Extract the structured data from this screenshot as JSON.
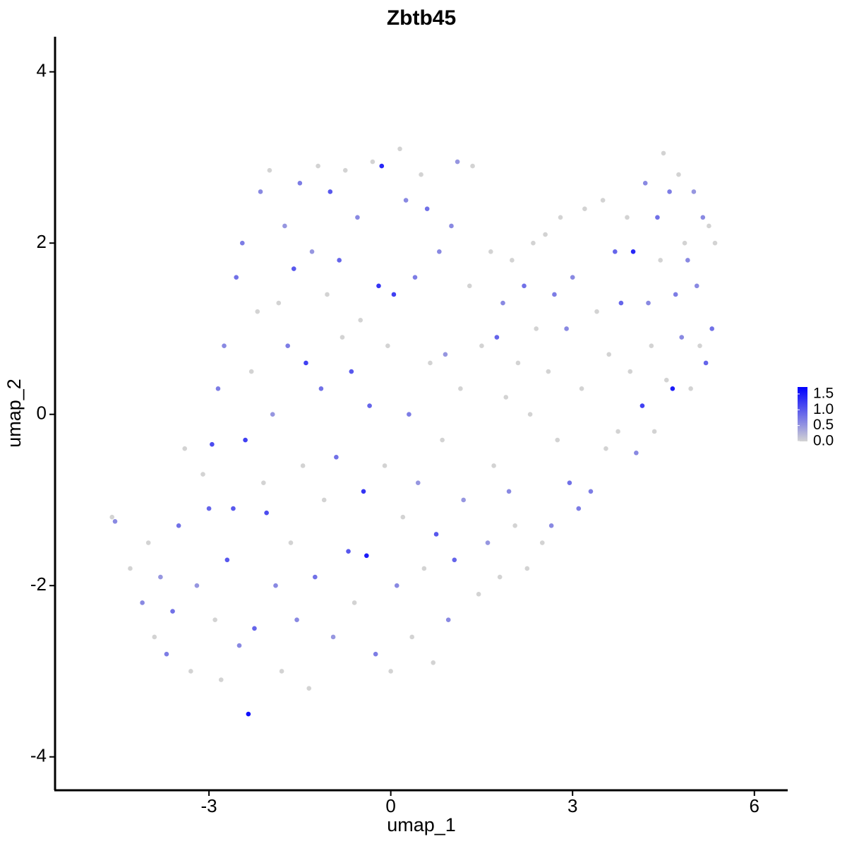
{
  "chart_data": {
    "type": "scatter",
    "title": "Zbtb45",
    "xlabel": "umap_1",
    "ylabel": "umap_2",
    "xlim": [
      -5.54,
      6.55
    ],
    "ylim": [
      -4.39,
      4.41
    ],
    "xticks": [
      -3,
      0,
      3,
      6
    ],
    "yticks": [
      -4,
      -2,
      0,
      2,
      4
    ],
    "x": [
      -4.6,
      -4.55,
      -4.3,
      -4.1,
      -4,
      -3.9,
      -3.8,
      -3.7,
      -3.6,
      -3.5,
      -3.4,
      -3.3,
      -3.2,
      -3.1,
      -3.0,
      -2.95,
      -2.9,
      -2.85,
      -2.8,
      -2.75,
      -2.7,
      -2.6,
      -2.55,
      -2.5,
      -2.45,
      -2.4,
      -2.35,
      -2.3,
      -2.25,
      -2.2,
      -2.15,
      -2.1,
      -2.05,
      -2.0,
      -1.95,
      -1.9,
      -1.85,
      -1.8,
      -1.75,
      -1.7,
      -1.65,
      -1.6,
      -1.55,
      -1.5,
      -1.45,
      -1.4,
      -1.35,
      -1.3,
      -1.25,
      -1.2,
      -1.15,
      -1.1,
      -1.05,
      -1.0,
      -0.95,
      -0.9,
      -0.85,
      -0.8,
      -0.75,
      -0.7,
      -0.65,
      -0.6,
      -0.55,
      -0.5,
      -0.45,
      -0.4,
      -0.35,
      -0.3,
      -0.25,
      -0.2,
      -0.15,
      -0.1,
      -0.05,
      0,
      0.05,
      0.1,
      0.15,
      0.2,
      0.25,
      0.3,
      0.35,
      0.4,
      0.45,
      0.5,
      0.55,
      0.6,
      0.65,
      0.7,
      0.75,
      0.8,
      0.85,
      0.9,
      0.95,
      1.0,
      1.05,
      1.1,
      1.15,
      1.2,
      1.3,
      1.35,
      1.45,
      1.5,
      1.6,
      1.65,
      1.7,
      1.75,
      1.8,
      1.85,
      1.9,
      1.95,
      2.0,
      2.05,
      2.1,
      2.2,
      2.25,
      2.3,
      2.35,
      2.4,
      2.5,
      2.55,
      2.6,
      2.65,
      2.7,
      2.75,
      2.8,
      2.9,
      2.95,
      3.0,
      3.1,
      3.15,
      3.2,
      3.3,
      3.4,
      3.5,
      3.55,
      3.6,
      3.7,
      3.75,
      3.8,
      3.9,
      3.95,
      4.0,
      4.05,
      4.15,
      4.2,
      4.25,
      4.3,
      4.35,
      4.4,
      4.45,
      4.5,
      4.55,
      4.6,
      4.65,
      4.7,
      4.75,
      4.8,
      4.85,
      4.9,
      4.95,
      5.0,
      5.05,
      5.1,
      5.15,
      5.2,
      5.25,
      5.3,
      5.35
    ],
    "y": [
      -1.2,
      -1.25,
      -1.8,
      -2.2,
      -1.5,
      -2.6,
      -1.9,
      -2.8,
      -2.3,
      -1.3,
      -0.4,
      -3.0,
      -2.0,
      -0.7,
      -1.1,
      -0.35,
      -2.4,
      0.3,
      -3.1,
      0.8,
      -1.7,
      -1.1,
      1.6,
      -2.7,
      2.0,
      -0.3,
      -3.5,
      0.5,
      -2.5,
      1.2,
      2.6,
      -0.8,
      -1.15,
      2.85,
      0,
      -2.0,
      1.3,
      -3.0,
      2.2,
      0.8,
      -1.5,
      1.7,
      -2.4,
      2.7,
      -0.6,
      0.6,
      -3.2,
      1.9,
      -1.9,
      2.9,
      0.3,
      -1.0,
      1.4,
      2.6,
      -2.6,
      -0.5,
      1.8,
      0.9,
      2.85,
      -1.6,
      0.5,
      -2.2,
      2.3,
      1.1,
      -0.9,
      -1.65,
      0.1,
      2.95,
      -2.8,
      1.5,
      2.9,
      -0.6,
      0.8,
      -3.0,
      1.4,
      -2.0,
      3.1,
      -1.2,
      2.5,
      0.0,
      -2.6,
      1.6,
      -0.8,
      2.8,
      -1.8,
      2.4,
      0.6,
      -2.9,
      -1.4,
      1.9,
      -0.3,
      0.7,
      -2.4,
      2.2,
      -1.7,
      2.95,
      0.3,
      -1.0,
      1.5,
      2.9,
      -2.1,
      0.8,
      -1.5,
      1.9,
      -0.6,
      0.9,
      -1.9,
      1.3,
      0.2,
      -0.9,
      1.8,
      -1.3,
      0.6,
      1.5,
      -1.8,
      0.0,
      2.0,
      1.0,
      -1.5,
      2.1,
      0.5,
      -1.3,
      1.4,
      -0.3,
      2.3,
      1.0,
      -0.8,
      1.6,
      -1.1,
      0.3,
      2.4,
      -0.9,
      1.2,
      2.5,
      -0.4,
      0.7,
      1.9,
      -0.2,
      1.3,
      2.3,
      0.5,
      1.9,
      -0.45,
      0.1,
      2.7,
      1.3,
      0.8,
      -0.2,
      2.3,
      1.8,
      3.05,
      0.4,
      2.6,
      0.3,
      1.4,
      2.8,
      0.9,
      2.0,
      1.8,
      0.3,
      2.6,
      1.5,
      0.8,
      2.3,
      0.6,
      2.2,
      1.0,
      2.0
    ],
    "values": [
      0,
      0.6,
      0,
      0.6,
      0,
      0,
      0.5,
      0.7,
      0.8,
      0.8,
      0,
      0,
      0.5,
      0,
      0.9,
      1.1,
      0,
      0.7,
      0,
      0.6,
      1.0,
      1.0,
      0.8,
      0.6,
      0.7,
      1.2,
      1.6,
      0,
      0.9,
      0,
      0.6,
      0,
      1.1,
      0,
      0.5,
      0.6,
      0,
      0,
      0.5,
      0.7,
      0,
      1.0,
      0.6,
      0.7,
      0,
      1.2,
      0,
      0.5,
      0.8,
      0,
      0.8,
      0,
      0,
      1.0,
      0.5,
      0.8,
      0.9,
      0,
      0,
      1.0,
      1.0,
      0,
      0.6,
      0,
      1.3,
      1.5,
      0.9,
      0,
      0.7,
      1.3,
      1.4,
      0,
      0,
      0,
      1.2,
      0.6,
      0,
      0,
      0.6,
      0.7,
      0,
      0.7,
      0.5,
      0,
      0,
      0.8,
      0,
      0,
      1.0,
      0.6,
      0,
      0.5,
      0.6,
      0.6,
      0.9,
      0.5,
      0,
      0.5,
      0,
      0,
      0,
      0,
      0.5,
      0,
      0,
      0.9,
      0,
      0.6,
      0,
      0.6,
      0,
      0,
      0,
      0.8,
      0,
      0,
      0,
      0,
      0,
      0,
      0,
      0.6,
      0.7,
      0,
      0,
      0.6,
      0.8,
      0.6,
      0.7,
      0,
      0,
      0.7,
      0,
      0,
      0,
      0,
      0.9,
      0,
      0.9,
      0,
      0,
      1.4,
      0.6,
      1.2,
      0.6,
      0.6,
      0,
      0,
      0.8,
      0,
      0,
      0,
      0.7,
      1.5,
      0.7,
      0,
      0.6,
      0,
      0.6,
      0,
      0.5,
      0.6,
      0,
      0.6,
      0.9,
      0,
      0.8,
      0
    ],
    "low_color": "#d3d3d3",
    "high_color": "#0000ff",
    "colorbar_lim": [
      0,
      1.72
    ],
    "colorbar_ticks": [
      {
        "value": 0,
        "label": "0.0"
      },
      0.5,
      {
        "value": 1,
        "label": "1.0"
      },
      1.5
    ]
  }
}
